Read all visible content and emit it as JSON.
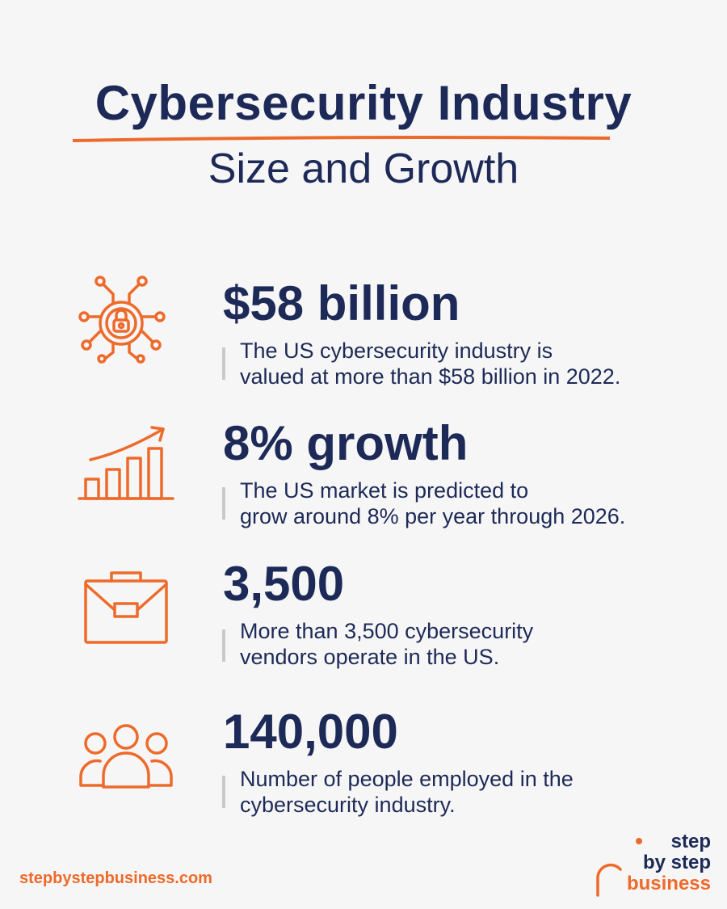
{
  "header": {
    "title": "Cybersecurity Industry",
    "subtitle": "Size and Growth"
  },
  "stats": [
    {
      "value": "$58 billion",
      "line1": "The US cybersecurity industry is",
      "line2": "valued at more than $58 billion in 2022.",
      "icon": "circuit-lock-icon"
    },
    {
      "value": "8% growth",
      "line1": "The US market is predicted to",
      "line2": "grow around 8% per year through 2026.",
      "icon": "growth-chart-icon"
    },
    {
      "value": "3,500",
      "line1": "More than 3,500 cybersecurity",
      "line2": "vendors operate in the US.",
      "icon": "briefcase-icon"
    },
    {
      "value": "140,000",
      "line1": "Number of people employed in the",
      "line2": "cybersecurity industry.",
      "icon": "people-group-icon"
    }
  ],
  "footer": {
    "url": "stepbystepbusiness.com",
    "logo": {
      "word1": "step",
      "word2": "by step",
      "word3": "business"
    }
  },
  "colors": {
    "navy": "#1d2a57",
    "orange": "#ee6a2b",
    "background": "#f6f6f6"
  }
}
